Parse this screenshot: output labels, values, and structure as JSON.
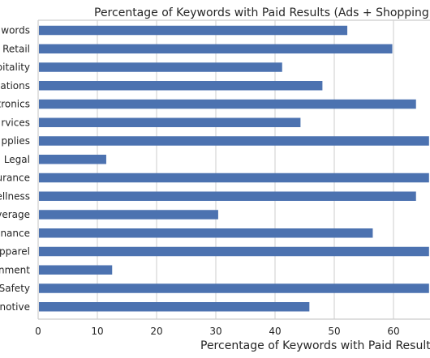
{
  "chart_data": {
    "type": "bar",
    "orientation": "horizontal",
    "title": "Percentage of Keywords with Paid Results (Ads + Shopping) by",
    "xlabel": "Percentage of Keywords with Paid Results",
    "ylabel": "",
    "xlim": [
      0,
      66
    ],
    "xticks": [
      0,
      10,
      20,
      30,
      40,
      50,
      60
    ],
    "grid": true,
    "categories": [
      "words",
      "Retail",
      "pitality",
      "ations",
      "tronics",
      "rvices",
      "pplies",
      "Legal",
      "urance",
      "ellness",
      "verage",
      "nance",
      "pparel",
      "nment",
      "Safety",
      "notive"
    ],
    "values": [
      52.2,
      59.8,
      41.2,
      48.0,
      63.8,
      44.3,
      66.0,
      11.5,
      66.0,
      63.8,
      30.4,
      56.5,
      66.0,
      12.5,
      66.0,
      45.8
    ],
    "bar_color": "#4c72b0"
  }
}
